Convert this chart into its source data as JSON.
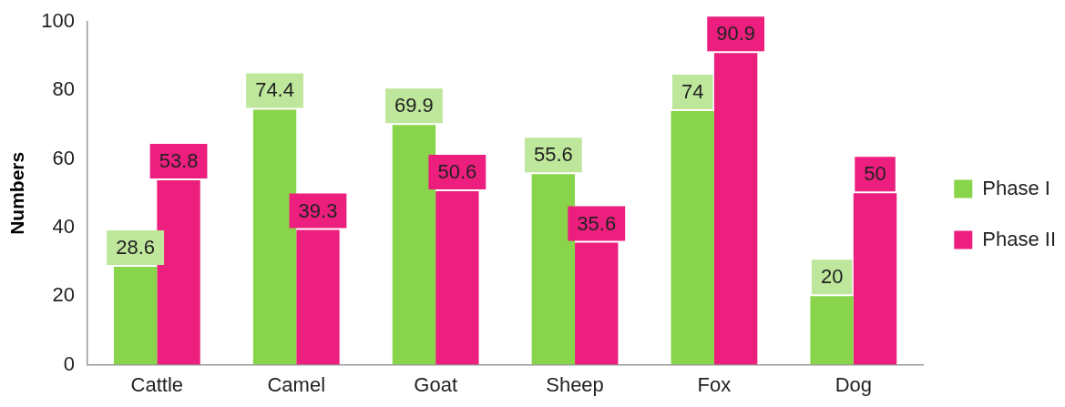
{
  "chart_data": {
    "type": "bar",
    "ylabel": "Numbers",
    "categories": [
      "Cattle",
      "Camel",
      "Goat",
      "Sheep",
      "Fox",
      "Dog"
    ],
    "series": [
      {
        "name": "Phase I",
        "color": "#88d44a",
        "values": [
          28.6,
          74.4,
          69.9,
          55.6,
          74,
          20
        ]
      },
      {
        "name": "Phase II",
        "color": "#ec1e7e",
        "values": [
          53.8,
          39.3,
          50.6,
          35.6,
          90.9,
          50
        ]
      }
    ],
    "ylim": [
      0,
      100
    ],
    "yticks": [
      0,
      20,
      40,
      60,
      80,
      100
    ],
    "grid": false,
    "legend": "right",
    "data_labels": true
  }
}
